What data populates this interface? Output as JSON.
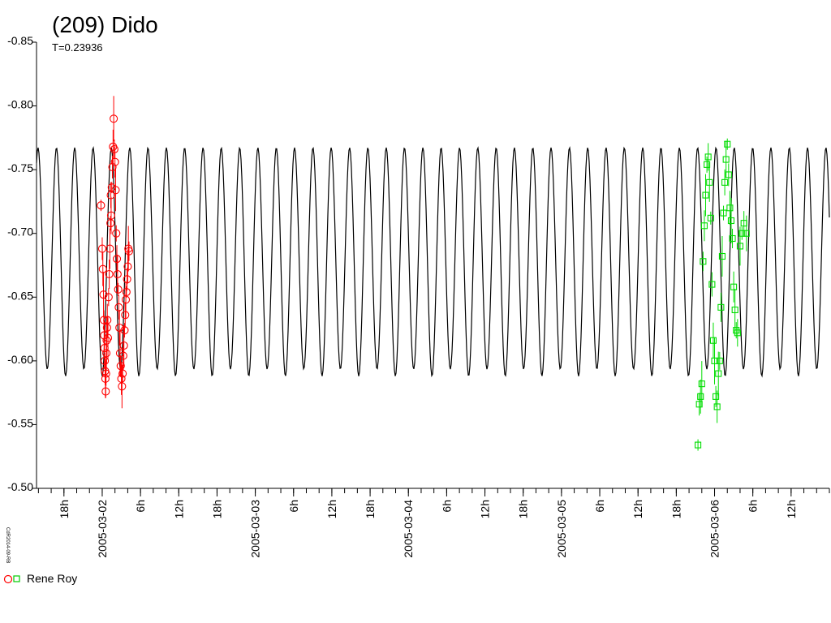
{
  "chart_data": {
    "type": "scatter",
    "title": "(209) Dido",
    "subtitle": "T=0.23936",
    "side_label": "CdR2014-09-RB",
    "y_axis": {
      "ticks": [
        "-0.85",
        "-0.80",
        "-0.75",
        "-0.70",
        "-0.65",
        "-0.60",
        "-0.55",
        "-0.50"
      ],
      "range": [
        -0.85,
        -0.5
      ],
      "reversed": true
    },
    "x_axis": {
      "ticks": [
        "18h",
        "2005-03-02",
        "6h",
        "12h",
        "18h",
        "2005-03-03",
        "6h",
        "12h",
        "18h",
        "2005-03-04",
        "6h",
        "12h",
        "18h",
        "2005-03-05",
        "6h",
        "12h",
        "18h",
        "2005-03-06",
        "6h",
        "12h"
      ],
      "range_hours": [
        -10.3,
        114
      ],
      "tick_hours": [
        -6,
        0,
        6,
        12,
        18,
        24,
        30,
        36,
        42,
        48,
        54,
        60,
        66,
        72,
        78,
        84,
        90,
        96,
        102,
        108
      ]
    },
    "model_curve": {
      "period_hours": 5.74464,
      "ymin": -0.77,
      "ymax": -0.588,
      "color": "#000000"
    },
    "series": [
      {
        "name": "Rene Roy",
        "marker": "circle",
        "color": "#ff0000",
        "x_hours": [
          -0.2,
          0.0,
          0.1,
          0.2,
          0.25,
          0.3,
          0.35,
          0.4,
          0.45,
          0.5,
          0.55,
          0.6,
          0.65,
          0.7,
          0.75,
          0.8,
          0.9,
          1.0,
          1.1,
          1.2,
          1.3,
          1.35,
          1.4,
          1.5,
          1.6,
          1.7,
          1.8,
          1.9,
          2.0,
          2.1,
          2.2,
          2.3,
          2.4,
          2.5,
          2.6,
          2.7,
          2.8,
          2.9,
          3.0,
          3.1,
          3.2,
          3.3,
          3.4,
          3.5,
          3.6,
          3.7,
          3.8,
          3.9,
          4.0,
          4.1,
          4.2
        ],
        "y": [
          -0.722,
          -0.688,
          -0.672,
          -0.652,
          -0.632,
          -0.62,
          -0.61,
          -0.6,
          -0.592,
          -0.586,
          -0.576,
          -0.59,
          -0.606,
          -0.616,
          -0.626,
          -0.632,
          -0.618,
          -0.65,
          -0.668,
          -0.688,
          -0.708,
          -0.73,
          -0.714,
          -0.736,
          -0.752,
          -0.768,
          -0.79,
          -0.766,
          -0.756,
          -0.734,
          -0.7,
          -0.68,
          -0.668,
          -0.656,
          -0.642,
          -0.626,
          -0.606,
          -0.596,
          -0.586,
          -0.58,
          -0.59,
          -0.604,
          -0.612,
          -0.624,
          -0.636,
          -0.648,
          -0.654,
          -0.664,
          -0.674,
          -0.688,
          -0.686
        ]
      },
      {
        "name": "",
        "marker": "square",
        "color": "#00dd00",
        "x_hours": [
          93.4,
          93.6,
          93.8,
          94.0,
          94.2,
          94.4,
          94.6,
          94.8,
          95.0,
          95.2,
          95.4,
          95.6,
          95.8,
          96.0,
          96.2,
          96.4,
          96.6,
          96.8,
          97.0,
          97.2,
          97.4,
          97.6,
          97.8,
          98.0,
          98.2,
          98.4,
          98.6,
          98.8,
          99.0,
          99.2,
          99.4,
          99.6,
          100.0,
          100.3,
          100.6,
          101.0
        ],
        "y": [
          -0.534,
          -0.566,
          -0.572,
          -0.582,
          -0.678,
          -0.706,
          -0.73,
          -0.754,
          -0.76,
          -0.74,
          -0.712,
          -0.66,
          -0.616,
          -0.6,
          -0.572,
          -0.564,
          -0.59,
          -0.6,
          -0.642,
          -0.682,
          -0.716,
          -0.74,
          -0.758,
          -0.77,
          -0.746,
          -0.72,
          -0.71,
          -0.696,
          -0.658,
          -0.64,
          -0.624,
          -0.622,
          -0.69,
          -0.7,
          -0.708,
          -0.7
        ]
      }
    ],
    "legend": {
      "label": "Rene Roy",
      "placement": "bottom-left"
    }
  }
}
